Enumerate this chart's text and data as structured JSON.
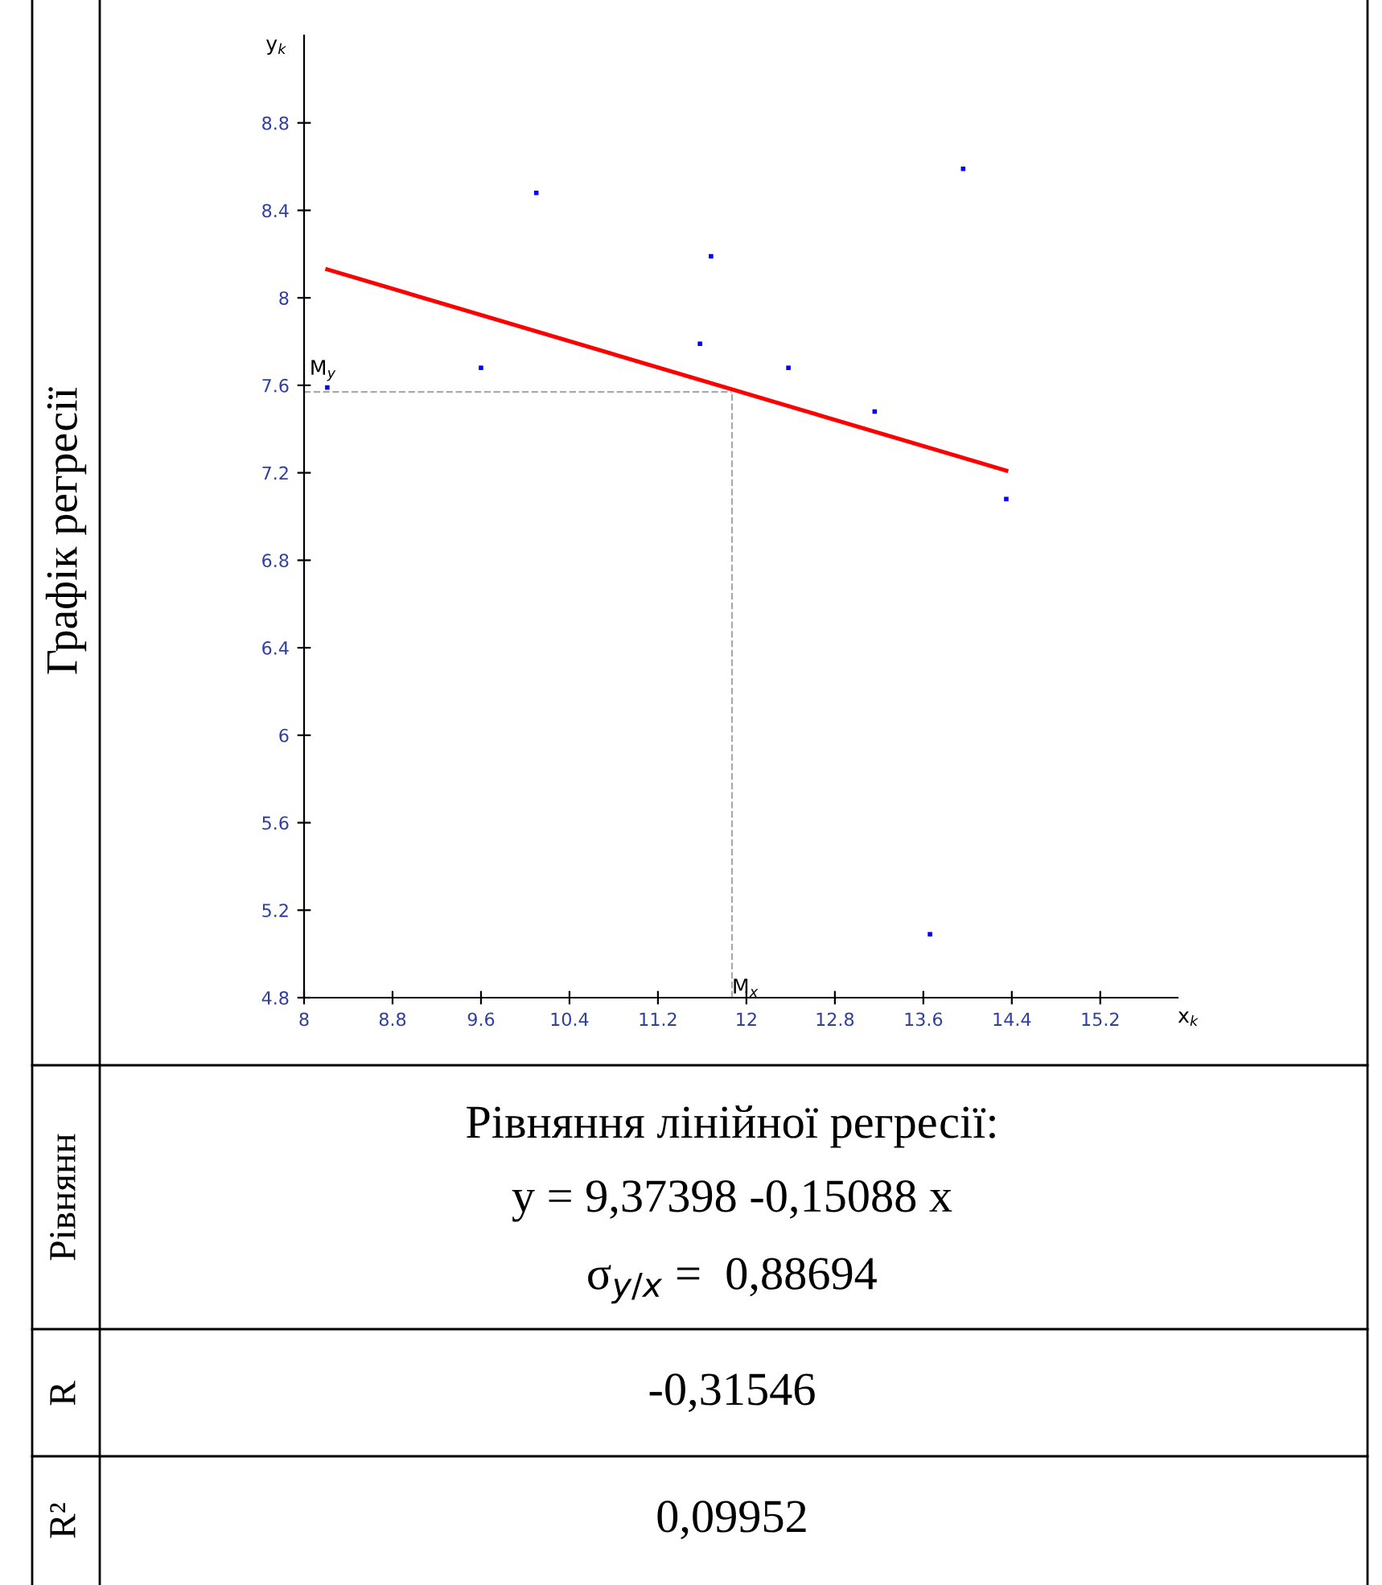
{
  "chart_data": {
    "type": "scatter",
    "xlabel": "x$_{k}$",
    "ylabel": "y$_{k}$",
    "xlim": [
      8,
      15.9
    ],
    "ylim": [
      4.8,
      9.2
    ],
    "xticks": [
      8,
      8.8,
      9.6,
      10.4,
      11.2,
      12,
      12.8,
      13.6,
      14.4,
      15.2
    ],
    "yticks": [
      4.8,
      5.2,
      5.6,
      6,
      6.4,
      6.8,
      7.2,
      7.6,
      8,
      8.4,
      8.8
    ],
    "grid": false,
    "legend": false,
    "series": [
      {
        "marker": "square",
        "color": "#0000ff",
        "x": [
          8.21,
          9.6,
          10.1,
          11.58,
          11.68,
          12.38,
          13.16,
          13.66,
          13.96,
          14.35
        ],
        "values": [
          7.59,
          7.68,
          8.48,
          7.79,
          8.19,
          7.68,
          7.48,
          5.09,
          8.59,
          7.08
        ]
      },
      {
        "type": "line",
        "color": "#ff0000",
        "x": [
          8.21,
          14.35
        ],
        "values": [
          8.13,
          7.21
        ]
      }
    ],
    "ref_lines": [
      {
        "axis": "x",
        "value": 11.87,
        "label": "M$_{x}$",
        "color": "#aaaaaa",
        "line_style": "dashed"
      },
      {
        "axis": "y",
        "value": 7.57,
        "label": "M$_{y}$",
        "color": "#aaaaaa",
        "line_style": "dashed"
      }
    ],
    "annotations": [
      "Графік регресії",
      "Рівнянн",
      "Рівняння лінійної регресії:",
      "y = 9,37398 -0,15088 x",
      "σ$_{y/x}$ =  0,88694",
      "R",
      "-0,31546",
      "R²",
      "0,09952"
    ]
  }
}
